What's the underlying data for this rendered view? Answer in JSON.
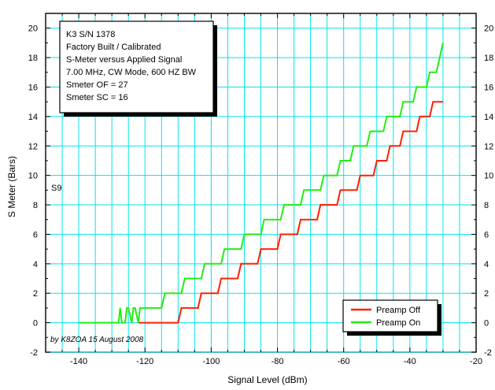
{
  "chart_data": {
    "type": "line",
    "xlabel": "Signal Level (dBm)",
    "ylabel": "S Meter (Bars)",
    "xlim": [
      -150,
      -20
    ],
    "ylim": [
      -2,
      21
    ],
    "xticks": [
      -140,
      -120,
      -100,
      -80,
      -60,
      -40,
      -20
    ],
    "yticks": [
      -2,
      0,
      2,
      4,
      6,
      8,
      10,
      12,
      14,
      16,
      18,
      20
    ],
    "grid": true,
    "grid_color": "#00e5ee",
    "info_box": [
      "K3 S/N 1378",
      "Factory Built / Calibrated",
      "S-Meter versus Applied Signal",
      "7.00 MHz, CW Mode, 600 HZ BW",
      "Smeter OF = 27",
      "Smeter SC = 16"
    ],
    "annotations": {
      "s9": "S9",
      "credit": "by K8ZOA 15 August 2008"
    },
    "legend_position": "bottom-right",
    "series": [
      {
        "name": "Preamp Off",
        "color": "#ff2000",
        "x": [
          -122,
          -110,
          -109,
          -104,
          -103,
          -98,
          -97,
          -92,
          -91,
          -86,
          -85,
          -80,
          -79,
          -74,
          -73,
          -68,
          -67,
          -62,
          -61,
          -56,
          -55,
          -51,
          -50,
          -47,
          -46,
          -43,
          -42,
          -38,
          -37,
          -34,
          -33,
          -30
        ],
        "y": [
          0,
          0,
          1,
          1,
          2,
          2,
          3,
          3,
          4,
          4,
          5,
          5,
          6,
          6,
          7,
          7,
          8,
          8,
          9,
          9,
          10,
          10,
          11,
          11,
          12,
          12,
          13,
          13,
          14,
          14,
          15,
          15
        ]
      },
      {
        "name": "Preamp On",
        "color": "#22ee11",
        "x": [
          -140,
          -128,
          -127.5,
          -127,
          -126,
          -125.5,
          -125,
          -124,
          -123.5,
          -123,
          -122,
          -121.5,
          -121,
          -115,
          -114,
          -109,
          -108,
          -103,
          -102,
          -97,
          -96,
          -91,
          -90,
          -85,
          -84,
          -79,
          -78,
          -73,
          -72,
          -67,
          -66,
          -62,
          -61,
          -58,
          -57,
          -53,
          -52,
          -48,
          -47,
          -43,
          -42,
          -39,
          -38,
          -35,
          -34,
          -32,
          -31,
          -30
        ],
        "y": [
          0,
          0,
          1,
          0,
          0,
          1,
          1,
          0,
          1,
          1,
          0,
          1,
          1,
          1,
          2,
          2,
          3,
          3,
          4,
          4,
          5,
          5,
          6,
          6,
          7,
          7,
          8,
          8,
          9,
          9,
          10,
          10,
          11,
          11,
          12,
          12,
          13,
          13,
          14,
          14,
          15,
          15,
          16,
          16,
          17,
          17,
          18,
          19
        ]
      }
    ]
  }
}
